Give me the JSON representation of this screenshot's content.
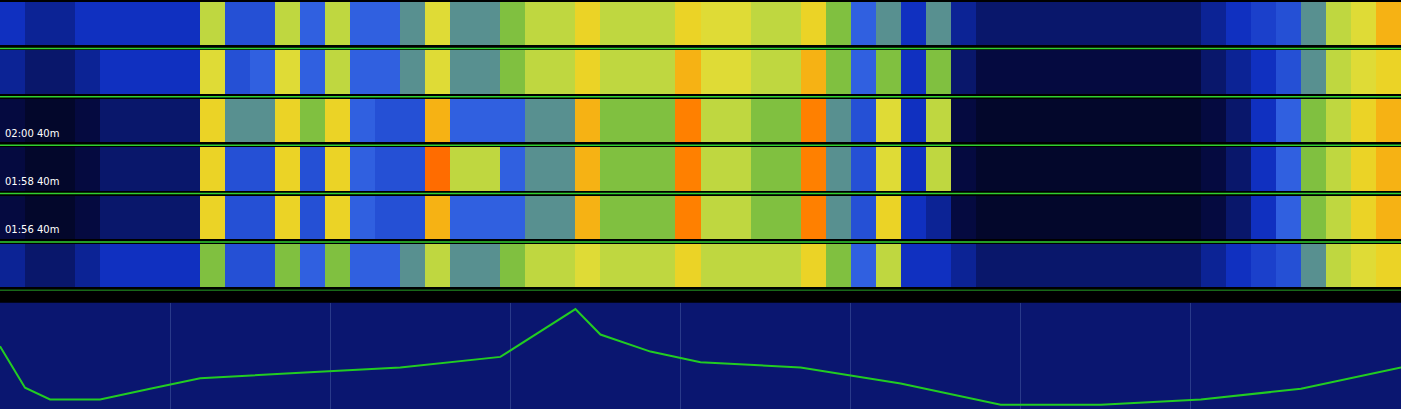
{
  "chart_data": [
    {
      "type": "heatmap",
      "rows": [
        null,
        null,
        "02:00 40m",
        "01:58 40m",
        "01:56 40m",
        null
      ],
      "xlim": [
        0,
        56
      ],
      "zlim": [
        0,
        10
      ],
      "cells": [
        [
          3,
          2.5,
          2.5,
          3,
          3,
          3,
          3,
          3,
          6,
          4,
          4,
          6,
          4.5,
          6,
          4.5,
          4.5,
          5,
          6.5,
          5,
          5,
          5.5,
          6,
          6,
          7,
          6,
          6,
          6,
          7,
          6.5,
          6.5,
          6,
          6,
          7,
          5.5,
          4.5,
          5,
          3,
          5,
          2.5,
          2,
          2,
          2,
          2,
          2,
          2,
          2,
          2,
          2,
          2.5,
          3,
          3.5,
          4,
          5,
          6,
          6.5,
          7.5
        ],
        [
          2.5,
          2,
          2,
          2.5,
          3,
          3,
          3,
          3,
          6.5,
          4,
          4.5,
          6.5,
          4.5,
          6,
          4.5,
          4.5,
          5,
          6.5,
          5,
          5,
          5.5,
          6,
          6,
          7,
          6,
          6,
          6,
          7.5,
          6.5,
          6.5,
          6,
          6,
          7.5,
          5.5,
          4.5,
          5.5,
          3,
          5.5,
          2,
          1.5,
          1.5,
          1.5,
          1.5,
          1.5,
          1.5,
          1.5,
          1.5,
          1.5,
          2,
          2.5,
          3,
          4,
          5,
          6,
          6.5,
          7
        ],
        [
          1.5,
          1,
          1,
          1.5,
          2,
          2,
          2,
          2,
          7,
          5,
          5,
          7,
          5.5,
          7,
          4.5,
          4,
          4,
          7.5,
          4.5,
          4.5,
          4.5,
          5,
          5,
          7.5,
          5.5,
          5.5,
          5.5,
          8,
          6,
          6,
          5.5,
          5.5,
          8,
          5,
          4,
          6.5,
          3,
          6,
          1.5,
          1,
          1,
          1,
          1,
          1,
          1,
          1,
          1,
          1,
          1.5,
          2,
          3,
          4.5,
          5.5,
          6,
          7,
          7.5
        ],
        [
          1.5,
          1,
          1,
          1.5,
          2,
          2,
          2,
          2,
          7,
          4,
          4,
          7,
          4,
          7,
          4.5,
          4,
          4,
          8.5,
          6,
          6,
          4.5,
          5,
          5,
          7.5,
          5.5,
          5.5,
          5.5,
          8,
          6,
          6,
          5.5,
          5.5,
          8,
          5,
          4,
          6.5,
          3,
          6,
          1.5,
          1,
          1,
          1,
          1,
          1,
          1,
          1,
          1,
          1,
          1.5,
          2,
          3,
          4.5,
          5.5,
          6,
          7,
          7.5
        ],
        [
          1.5,
          1,
          1,
          1.5,
          2,
          2,
          2,
          2,
          7,
          4,
          4,
          7,
          4,
          7,
          4.5,
          4,
          4,
          7.5,
          4.5,
          4.5,
          4.5,
          5,
          5,
          7.5,
          5.5,
          5.5,
          5.5,
          8,
          6,
          6,
          5.5,
          5.5,
          8,
          5,
          4,
          7,
          3,
          2.5,
          1.5,
          1,
          1,
          1,
          1,
          1,
          1,
          1,
          1,
          1,
          1.5,
          2,
          3,
          4.5,
          5.5,
          6,
          7,
          7.5
        ],
        [
          2.5,
          2,
          2,
          2.5,
          3,
          3,
          3,
          3,
          5.5,
          4,
          4,
          5.5,
          4.5,
          5.5,
          4.5,
          4.5,
          5,
          6,
          5,
          5,
          5.5,
          6,
          6,
          6.5,
          6,
          6,
          6,
          7,
          6,
          6,
          6,
          6,
          7,
          5.5,
          4.5,
          6,
          3,
          3,
          2.5,
          2,
          2,
          2,
          2,
          2,
          2,
          2,
          2,
          2,
          2.5,
          3,
          3.5,
          4,
          5,
          6,
          6.5,
          7
        ]
      ],
      "tick_labels": false
    },
    {
      "type": "line",
      "x": [
        0,
        1,
        2,
        4,
        6,
        8,
        12,
        16,
        20,
        23,
        24,
        26,
        28,
        32,
        36,
        40,
        44,
        48,
        52,
        56
      ],
      "values": [
        59,
        20,
        9,
        9,
        19,
        29,
        34,
        39,
        49,
        94,
        70,
        54,
        44,
        39,
        24,
        4,
        4,
        9,
        19,
        39
      ],
      "color": "#22cc22",
      "xlim": [
        0,
        56
      ],
      "ylim": [
        0,
        100
      ],
      "xticks": [
        6.8,
        13.2,
        20.4,
        27.2,
        34,
        40.8,
        47.6
      ],
      "grid": true,
      "tick_labels": false
    }
  ]
}
